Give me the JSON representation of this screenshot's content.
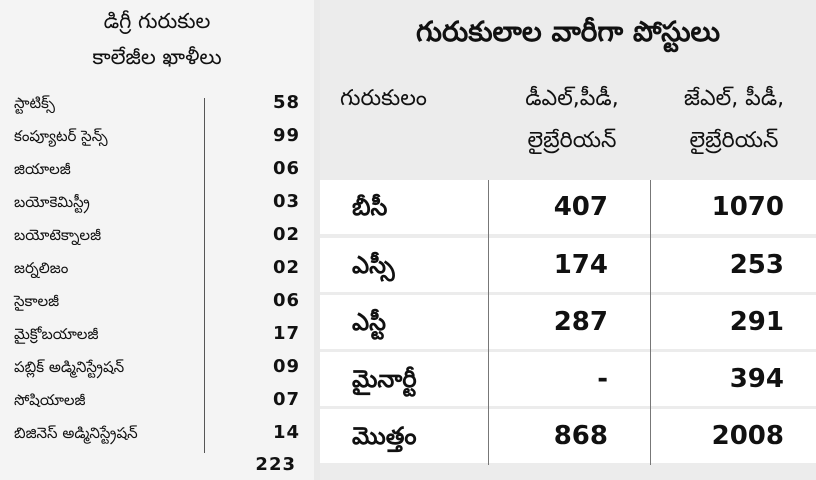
{
  "left": {
    "title_line1": "డిగ్రీ గురుకుల",
    "title_line2": "కాలేజీల ఖాళీలు",
    "subjects": [
      {
        "name": "స్టాటిక్స్",
        "count": "58"
      },
      {
        "name": "కంప్యూటర్ సైన్స్",
        "count": "99"
      },
      {
        "name": "జియాలజీ",
        "count": "06"
      },
      {
        "name": "బయోకెమిస్ట్రీ",
        "count": "03"
      },
      {
        "name": "బయోటెక్నాలజీ",
        "count": "02"
      },
      {
        "name": "జర్నలిజం",
        "count": "02"
      },
      {
        "name": "సైకాలజీ",
        "count": "06"
      },
      {
        "name": "మైక్రోబయాలజీ",
        "count": "17"
      },
      {
        "name": "పబ్లిక్ అడ్మినిస్ట్రేషన్",
        "count": "09"
      },
      {
        "name": "సోషియాలజీ",
        "count": "07"
      },
      {
        "name": "బిజినెస్ అడ్మినిస్ట్రేషన్",
        "count": "14"
      }
    ],
    "total": "223"
  },
  "right": {
    "title": "గురుకులాల వారీగా పోస్టులు",
    "headers": {
      "col0": "గురుకులం",
      "col1_line1": "డీఎల్,పీడీ,",
      "col1_line2": "లైబ్రేరియన్",
      "col2_line1": "జేఎల్, పీడీ,",
      "col2_line2": "లైబ్రేరియన్"
    },
    "rows": [
      {
        "category": "బీసీ",
        "v1": "407",
        "v2": "1070"
      },
      {
        "category": "ఎస్సీ",
        "v1": "174",
        "v2": "253"
      },
      {
        "category": "ఎస్టీ",
        "v1": "287",
        "v2": "291"
      },
      {
        "category": "మైనార్టీ",
        "v1": "-",
        "v2": "394"
      },
      {
        "category": "మొత్తం",
        "v1": "868",
        "v2": "2008"
      }
    ]
  }
}
